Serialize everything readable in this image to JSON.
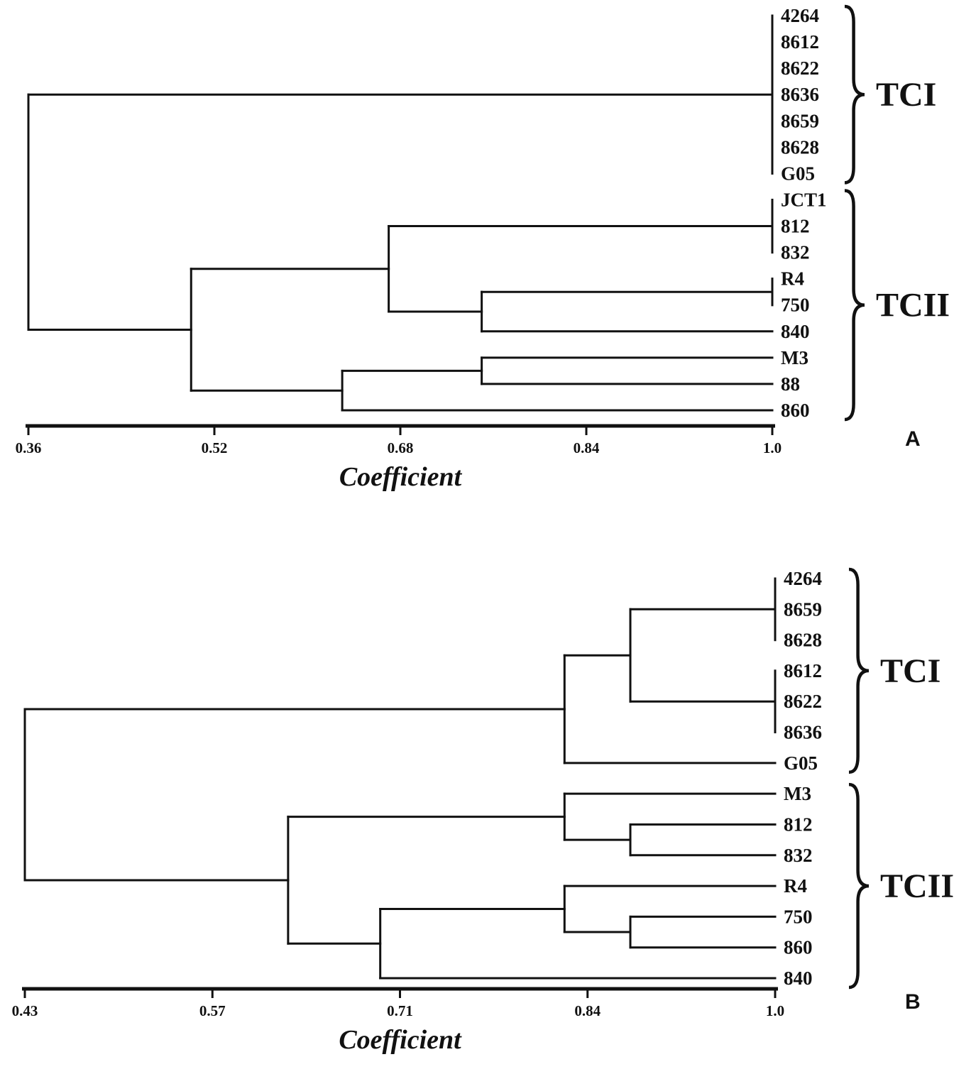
{
  "figure": {
    "ink": "#111111",
    "background": "#ffffff"
  },
  "chart_data": [
    {
      "type": "dendrogram",
      "panel": "A",
      "xlabel": "Coefficient",
      "axis_range": [
        0.36,
        1.0
      ],
      "axis_ticks": [
        "0.36",
        "0.52",
        "0.68",
        "0.84",
        "1.0"
      ],
      "leaves": [
        "4264",
        "8612",
        "8622",
        "8636",
        "8659",
        "8628",
        "G05",
        "JCT1",
        "812",
        "832",
        "R4",
        "750",
        "840",
        "M3",
        "88",
        "860"
      ],
      "groups": [
        {
          "label": "TCI",
          "start": 0,
          "end": 6
        },
        {
          "label": "TCII",
          "start": 7,
          "end": 15
        }
      ],
      "tree": {
        "c": 0.36,
        "children": [
          {
            "c": 1.0,
            "children": [
              "4264",
              "8612",
              "8622",
              "8636",
              "8659",
              "8628",
              "G05"
            ]
          },
          {
            "c": 0.5,
            "children": [
              {
                "c": 0.67,
                "children": [
                  {
                    "c": 1.0,
                    "children": [
                      "JCT1",
                      "812",
                      "832"
                    ]
                  },
                  {
                    "c": 0.75,
                    "children": [
                      {
                        "c": 1.0,
                        "children": [
                          "R4",
                          "750"
                        ]
                      },
                      "840"
                    ]
                  }
                ]
              },
              {
                "c": 0.63,
                "children": [
                  {
                    "c": 0.75,
                    "children": [
                      "M3",
                      "88"
                    ]
                  },
                  "860"
                ]
              }
            ]
          }
        ]
      }
    },
    {
      "type": "dendrogram",
      "panel": "B",
      "xlabel": "Coefficient",
      "axis_range": [
        0.43,
        1.0
      ],
      "axis_ticks": [
        "0.43",
        "0.57",
        "0.71",
        "0.84",
        "1.0"
      ],
      "leaves": [
        "4264",
        "8659",
        "8628",
        "8612",
        "8622",
        "8636",
        "G05",
        "M3",
        "812",
        "832",
        "R4",
        "750",
        "860",
        "840"
      ],
      "groups": [
        {
          "label": "TCI",
          "start": 0,
          "end": 6
        },
        {
          "label": "TCII",
          "start": 7,
          "end": 13
        }
      ],
      "tree": {
        "c": 0.43,
        "children": [
          {
            "c": 0.84,
            "children": [
              {
                "c": 0.89,
                "children": [
                  {
                    "c": 1.0,
                    "children": [
                      "4264",
                      "8659",
                      "8628"
                    ]
                  },
                  {
                    "c": 1.0,
                    "children": [
                      "8612",
                      "8622",
                      "8636"
                    ]
                  }
                ]
              },
              "G05"
            ]
          },
          {
            "c": 0.63,
            "children": [
              {
                "c": 0.84,
                "children": [
                  "M3",
                  {
                    "c": 0.89,
                    "children": [
                      "812",
                      "832"
                    ]
                  }
                ]
              },
              {
                "c": 0.7,
                "children": [
                  {
                    "c": 0.84,
                    "children": [
                      "R4",
                      {
                        "c": 0.89,
                        "children": [
                          "750",
                          "860"
                        ]
                      }
                    ]
                  },
                  "840"
                ]
              }
            ]
          }
        ]
      }
    }
  ]
}
